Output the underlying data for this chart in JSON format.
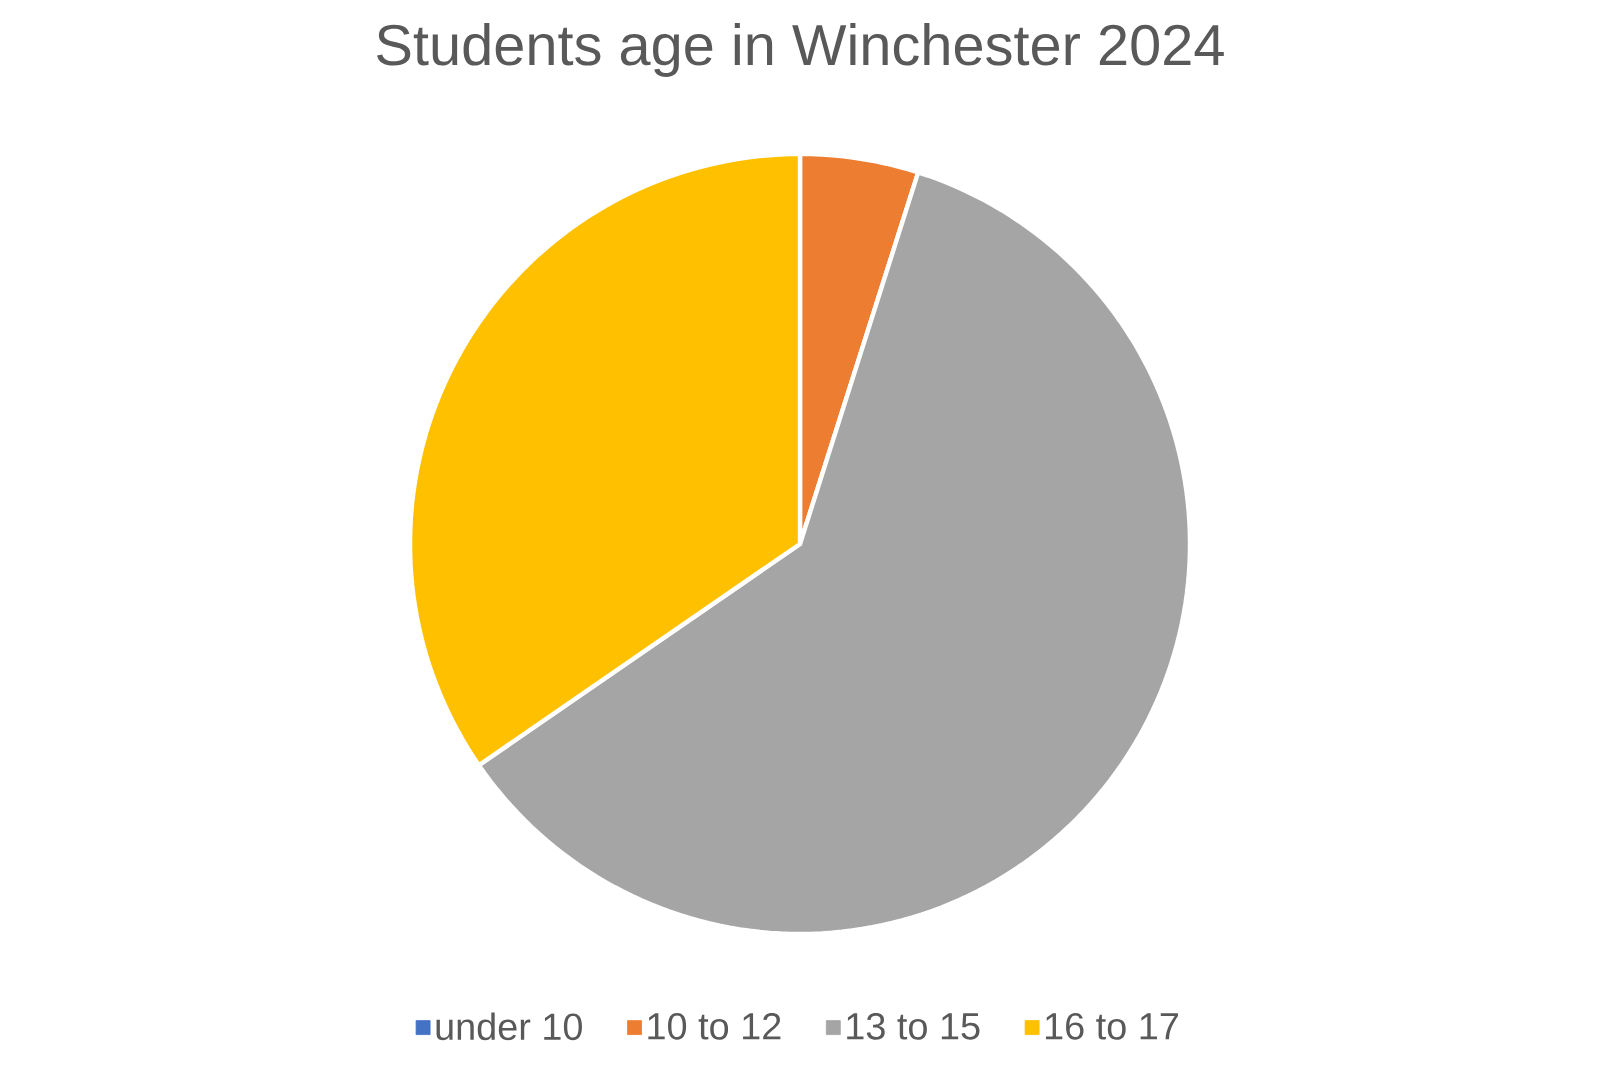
{
  "chart_data": {
    "type": "pie",
    "title": "Students age in Winchester 2024",
    "categories": [
      "under 10",
      "10 to 12",
      "13 to 15",
      "16 to 17"
    ],
    "values": [
      0,
      4.9,
      60.5,
      34.6
    ],
    "colors": [
      "#4472c4",
      "#ed7d31",
      "#a5a5a5",
      "#ffc000"
    ],
    "legend": "bottom"
  }
}
